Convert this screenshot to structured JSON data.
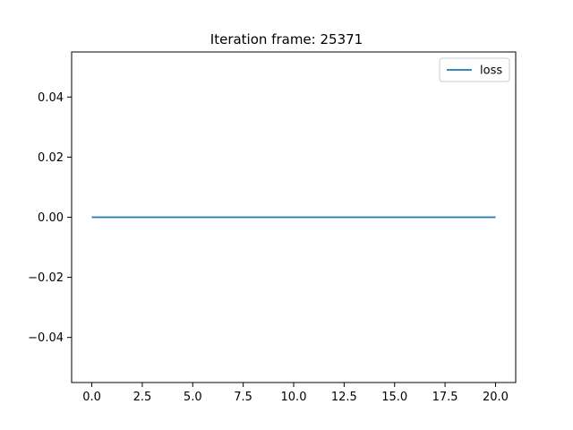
{
  "chart_data": {
    "type": "line",
    "title": "Iteration frame: 25371",
    "xlabel": "",
    "ylabel": "",
    "xlim": [
      -1.0,
      21.0
    ],
    "ylim": [
      -0.055,
      0.055
    ],
    "x_ticks": [
      0.0,
      2.5,
      5.0,
      7.5,
      10.0,
      12.5,
      15.0,
      17.5,
      20.0
    ],
    "x_tick_labels": [
      "0.0",
      "2.5",
      "5.0",
      "7.5",
      "10.0",
      "12.5",
      "15.0",
      "17.5",
      "20.0"
    ],
    "y_ticks": [
      -0.04,
      -0.02,
      0.0,
      0.02,
      0.04
    ],
    "y_tick_labels": [
      "−0.04",
      "−0.02",
      "0.00",
      "0.02",
      "0.04"
    ],
    "grid": false,
    "legend_position": "top-right",
    "series": [
      {
        "name": "loss",
        "color": "#1f77b4",
        "x": [
          0,
          1,
          2,
          3,
          4,
          5,
          6,
          7,
          8,
          9,
          10,
          11,
          12,
          13,
          14,
          15,
          16,
          17,
          18,
          19,
          20
        ],
        "y": [
          0,
          0,
          0,
          0,
          0,
          0,
          0,
          0,
          0,
          0,
          0,
          0,
          0,
          0,
          0,
          0,
          0,
          0,
          0,
          0,
          0
        ]
      }
    ]
  }
}
